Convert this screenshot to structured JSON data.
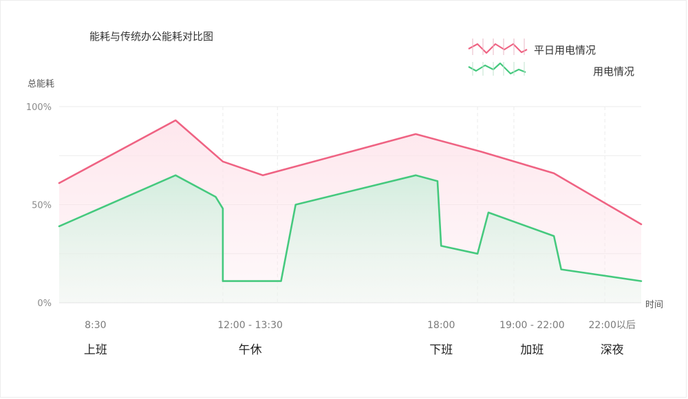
{
  "chart_data": {
    "type": "area",
    "title": "能耗与传统办公能耗对比图",
    "ylabel": "总能耗",
    "xlabel": "时间",
    "ylim": [
      0,
      100
    ],
    "yticks": [
      "0%",
      "50%",
      "100%"
    ],
    "ytick_values": [
      0,
      50,
      100
    ],
    "x_range": [
      7.5,
      23.5
    ],
    "time_labels": [
      {
        "x": 8.5,
        "text": "8:30"
      },
      {
        "x": 12.75,
        "text": "12:00 - 13:30"
      },
      {
        "x": 18.0,
        "text": "18:00"
      },
      {
        "x": 20.5,
        "text": "19:00 - 22:00"
      },
      {
        "x": 22.7,
        "text": "22:00以后"
      }
    ],
    "phase_labels": [
      {
        "x": 8.5,
        "text": "上班"
      },
      {
        "x": 12.75,
        "text": "午休"
      },
      {
        "x": 18.0,
        "text": "下班"
      },
      {
        "x": 20.5,
        "text": "加班"
      },
      {
        "x": 22.7,
        "text": "深夜"
      }
    ],
    "gridlines_x": [
      12.0,
      13.5,
      19.0,
      20.0,
      22.5
    ],
    "legend_position": "top-right",
    "series": [
      {
        "name": "平日用电情况",
        "color": "#ef6383",
        "fill_color": "#fde3ea",
        "points": [
          [
            7.5,
            61
          ],
          [
            10.7,
            93
          ],
          [
            12.0,
            72
          ],
          [
            13.1,
            65
          ],
          [
            17.3,
            86
          ],
          [
            19.1,
            77
          ],
          [
            21.1,
            66
          ],
          [
            23.5,
            40
          ]
        ]
      },
      {
        "name": "用电情况",
        "color": "#45c97e",
        "fill_color": "#d8f1e2",
        "points": [
          [
            7.5,
            39
          ],
          [
            10.7,
            65
          ],
          [
            11.8,
            54
          ],
          [
            12.0,
            48
          ],
          [
            12.0,
            11
          ],
          [
            13.6,
            11
          ],
          [
            14.0,
            50
          ],
          [
            17.3,
            65
          ],
          [
            17.9,
            62
          ],
          [
            18.0,
            29
          ],
          [
            19.0,
            25
          ],
          [
            19.3,
            46
          ],
          [
            21.1,
            34
          ],
          [
            21.3,
            17
          ],
          [
            23.5,
            11
          ]
        ]
      }
    ]
  },
  "colors": {
    "grid": "#ebebeb",
    "axis": "#dddddd",
    "background": "#ffffff"
  }
}
